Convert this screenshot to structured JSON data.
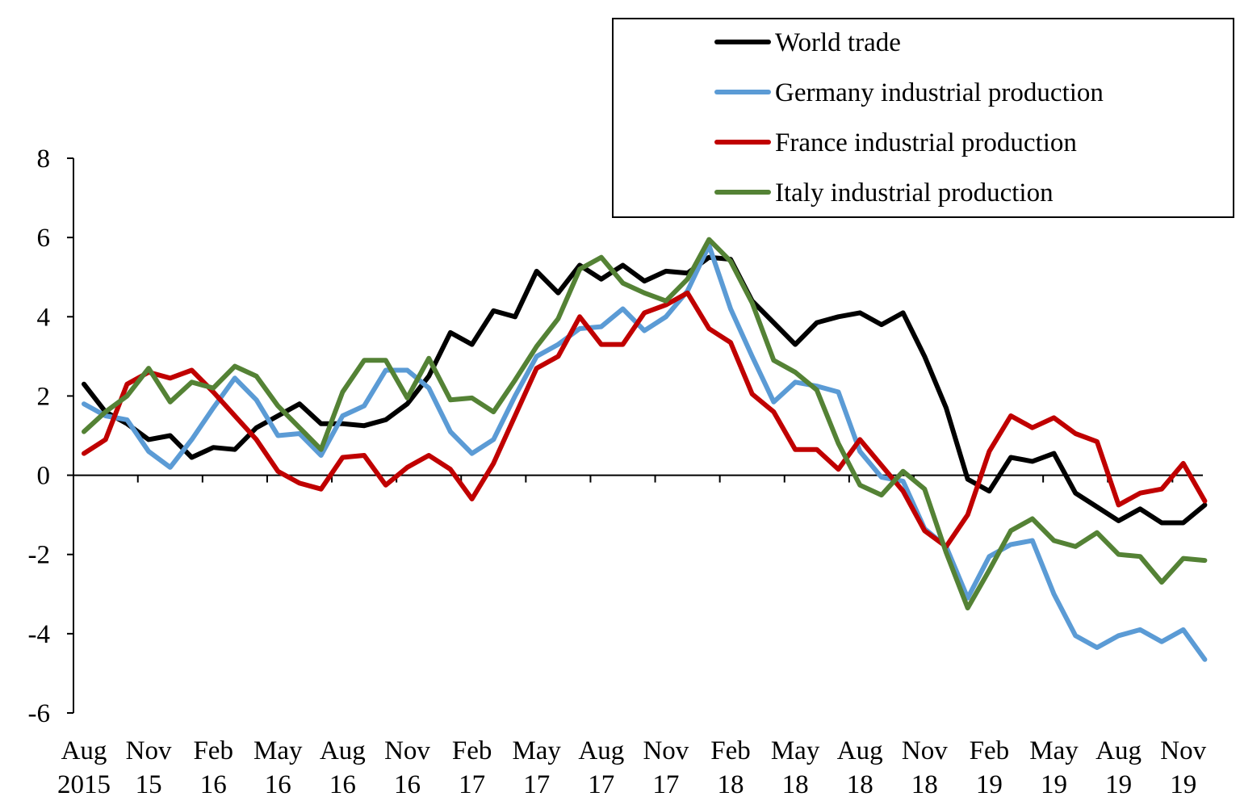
{
  "chart_data": {
    "type": "line",
    "title": "",
    "xlabel": "",
    "ylabel": "",
    "ylim": [
      -6,
      8
    ],
    "y_ticks": [
      "8",
      "6",
      "4",
      "2",
      "0",
      "-2",
      "-4",
      "-6"
    ],
    "x_tick_labels": [
      [
        "Aug",
        "2015"
      ],
      [
        "Nov",
        "15"
      ],
      [
        "Feb",
        "16"
      ],
      [
        "May",
        "16"
      ],
      [
        "Aug",
        "16"
      ],
      [
        "Nov",
        "16"
      ],
      [
        "Feb",
        "17"
      ],
      [
        "May",
        "17"
      ],
      [
        "Aug",
        "17"
      ],
      [
        "Nov",
        "17"
      ],
      [
        "Feb",
        "18"
      ],
      [
        "May",
        "18"
      ],
      [
        "Aug",
        "18"
      ],
      [
        "Nov",
        "18"
      ],
      [
        "Feb",
        "19"
      ],
      [
        "May",
        "19"
      ],
      [
        "Aug",
        "19"
      ],
      [
        "Nov",
        "19"
      ]
    ],
    "x_start": "2015-08",
    "x_end": "2019-12",
    "grid": false,
    "legend_position": "top-right",
    "series": [
      {
        "name": "World trade",
        "color": "#000000",
        "values": [
          2.3,
          1.6,
          1.3,
          0.9,
          1.0,
          0.45,
          0.7,
          0.65,
          1.2,
          1.5,
          1.8,
          1.3,
          1.3,
          1.25,
          1.4,
          1.8,
          2.5,
          3.6,
          3.3,
          4.15,
          4.0,
          5.15,
          4.6,
          5.3,
          4.95,
          5.3,
          4.9,
          5.15,
          5.1,
          5.5,
          5.45,
          4.4,
          3.85,
          3.3,
          3.85,
          4.0,
          4.1,
          3.8,
          4.1,
          3.0,
          1.7,
          -0.1,
          -0.4,
          0.45,
          0.35,
          0.55,
          -0.45,
          -0.8,
          -1.15,
          -0.85,
          -1.2,
          -1.2,
          -0.75
        ]
      },
      {
        "name": "Germany industrial production",
        "color": "#5b9bd5",
        "values": [
          1.8,
          1.5,
          1.4,
          0.6,
          0.2,
          0.9,
          1.7,
          2.45,
          1.9,
          1.0,
          1.05,
          0.5,
          1.5,
          1.75,
          2.65,
          2.65,
          2.2,
          1.1,
          0.55,
          0.9,
          2.0,
          3.0,
          3.3,
          3.7,
          3.75,
          4.2,
          3.65,
          4.0,
          4.65,
          5.8,
          4.2,
          3.0,
          1.85,
          2.35,
          2.25,
          2.1,
          0.6,
          -0.05,
          -0.15,
          -1.35,
          -1.8,
          -3.1,
          -2.05,
          -1.75,
          -1.65,
          -3.0,
          -4.05,
          -4.35,
          -4.05,
          -3.9,
          -4.2,
          -3.9,
          -4.65
        ]
      },
      {
        "name": "France industrial production",
        "color": "#c00000",
        "values": [
          0.55,
          0.9,
          2.3,
          2.6,
          2.45,
          2.65,
          2.1,
          1.5,
          0.9,
          0.1,
          -0.2,
          -0.35,
          0.45,
          0.5,
          -0.25,
          0.2,
          0.5,
          0.15,
          -0.6,
          0.3,
          1.5,
          2.7,
          3.0,
          4.0,
          3.3,
          3.3,
          4.1,
          4.3,
          4.6,
          3.7,
          3.35,
          2.05,
          1.6,
          0.65,
          0.65,
          0.15,
          0.9,
          0.25,
          -0.4,
          -1.4,
          -1.8,
          -1.0,
          0.6,
          1.5,
          1.2,
          1.45,
          1.05,
          0.85,
          -0.75,
          -0.45,
          -0.35,
          0.3,
          -0.65
        ]
      },
      {
        "name": "Italy industrial production",
        "color": "#548235",
        "values": [
          1.1,
          1.6,
          2.0,
          2.7,
          1.85,
          2.35,
          2.2,
          2.75,
          2.5,
          1.75,
          1.2,
          0.65,
          2.1,
          2.9,
          2.9,
          1.95,
          2.95,
          1.9,
          1.95,
          1.6,
          2.4,
          3.25,
          3.95,
          5.2,
          5.5,
          4.85,
          4.6,
          4.4,
          4.95,
          5.95,
          5.4,
          4.35,
          2.9,
          2.6,
          2.15,
          0.8,
          -0.25,
          -0.5,
          0.1,
          -0.35,
          -1.95,
          -3.35,
          -2.4,
          -1.4,
          -1.1,
          -1.65,
          -1.8,
          -1.45,
          -2.0,
          -2.05,
          -2.7,
          -2.1,
          -2.15
        ]
      }
    ]
  }
}
